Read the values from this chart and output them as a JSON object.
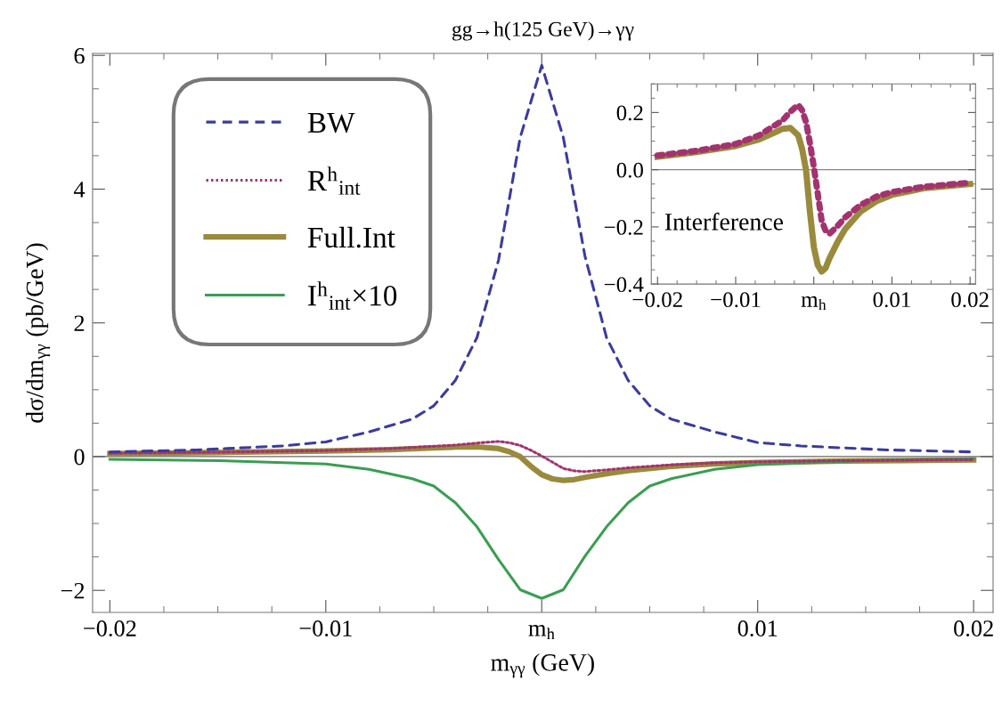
{
  "chart_data": [
    {
      "type": "line",
      "title": "gg→h(125 GeV)→γγ",
      "xlabel": "m$_{γγ}$ (GeV)",
      "ylabel": "dσ/dm$_{γγ}$ (pb/GeV)",
      "xlim": [
        -0.0208,
        0.0209
      ],
      "ylim": [
        -2.33,
        6.03
      ],
      "xticks": [
        {
          "value": -0.02,
          "label": "−0.02"
        },
        {
          "value": -0.01,
          "label": "−0.01"
        },
        {
          "value": 0,
          "label": "m$_{h}$"
        },
        {
          "value": 0.01,
          "label": "0.01"
        },
        {
          "value": 0.02,
          "label": "0.02"
        }
      ],
      "yticks": [
        {
          "value": -2,
          "label": "−2"
        },
        {
          "value": 0,
          "label": "0"
        },
        {
          "value": 2,
          "label": "2"
        },
        {
          "value": 4,
          "label": "4"
        },
        {
          "value": 6,
          "label": "6"
        }
      ],
      "legend": "top left",
      "grid": false,
      "ref_lines": [
        {
          "axis": "y",
          "value": 0,
          "color": "#666666"
        }
      ],
      "series": [
        {
          "name": "BW",
          "color": "#3b3b9e",
          "line_style": "dashed",
          "x": [
            -0.02,
            -0.016,
            -0.012,
            -0.01,
            -0.008,
            -0.006,
            -0.005,
            -0.004,
            -0.003,
            -0.002,
            -0.001,
            0,
            0.001,
            0.002,
            0.003,
            0.004,
            0.005,
            0.006,
            0.008,
            0.01,
            0.012,
            0.016,
            0.02
          ],
          "values": [
            0.07,
            0.1,
            0.16,
            0.22,
            0.37,
            0.56,
            0.76,
            1.14,
            1.78,
            2.94,
            4.77,
            5.85,
            4.77,
            3.0,
            1.78,
            1.14,
            0.76,
            0.56,
            0.37,
            0.21,
            0.16,
            0.1,
            0.07
          ]
        },
        {
          "name": "R$^{h}$$_{int}$",
          "color": "#a3336f",
          "line_style": "dotted",
          "x": [
            -0.02,
            -0.015,
            -0.01,
            -0.007,
            -0.005,
            -0.004,
            -0.003,
            -0.002,
            -0.0015,
            -0.001,
            -0.0005,
            0,
            0.0005,
            0.001,
            0.0015,
            0.002,
            0.003,
            0.004,
            0.006,
            0.008,
            0.01,
            0.014,
            0.02
          ],
          "values": [
            0.05,
            0.066,
            0.09,
            0.12,
            0.155,
            0.172,
            0.203,
            0.227,
            0.208,
            0.167,
            0.094,
            0.01,
            -0.083,
            -0.177,
            -0.213,
            -0.224,
            -0.198,
            -0.167,
            -0.123,
            -0.094,
            -0.078,
            -0.06,
            -0.045
          ]
        },
        {
          "name": "Full.Int",
          "color": "#9a8a3c",
          "line_style": "solid",
          "x": [
            -0.02,
            -0.015,
            -0.01,
            -0.007,
            -0.005,
            -0.004,
            -0.003,
            -0.002,
            -0.0015,
            -0.001,
            -0.0005,
            0,
            0.0005,
            0.001,
            0.0015,
            0.002,
            0.003,
            0.004,
            0.006,
            0.008,
            0.01,
            0.014,
            0.02
          ],
          "values": [
            0.045,
            0.062,
            0.083,
            0.106,
            0.13,
            0.143,
            0.146,
            0.12,
            0.073,
            0,
            -0.146,
            -0.27,
            -0.333,
            -0.356,
            -0.344,
            -0.31,
            -0.255,
            -0.208,
            -0.146,
            -0.11,
            -0.088,
            -0.065,
            -0.05
          ]
        },
        {
          "name": "I$^{h}$$_{int}$×10",
          "color": "#3a9e52",
          "line_style": "solid",
          "x": [
            -0.02,
            -0.015,
            -0.01,
            -0.008,
            -0.006,
            -0.005,
            -0.004,
            -0.003,
            -0.002,
            -0.001,
            0,
            0.001,
            0.002,
            0.003,
            0.004,
            0.005,
            0.006,
            0.008,
            0.01,
            0.015,
            0.02
          ],
          "values": [
            -0.04,
            -0.06,
            -0.11,
            -0.19,
            -0.33,
            -0.44,
            -0.69,
            -1.05,
            -1.54,
            -1.99,
            -2.12,
            -1.99,
            -1.49,
            -1.05,
            -0.69,
            -0.44,
            -0.33,
            -0.19,
            -0.12,
            -0.06,
            -0.03
          ]
        }
      ]
    },
    {
      "type": "line",
      "annotations": [
        "Interference"
      ],
      "xlim": [
        -0.0208,
        0.0207
      ],
      "ylim": [
        -0.4,
        0.3
      ],
      "xticks": [
        {
          "value": -0.02,
          "label": "−0.02"
        },
        {
          "value": -0.01,
          "label": "−0.01"
        },
        {
          "value": 0,
          "label": "m$_{h}$"
        },
        0.01,
        0.02
      ],
      "yticks": [
        {
          "value": -0.4,
          "label": "−0.4"
        },
        {
          "value": -0.2,
          "label": "−0.2"
        },
        {
          "value": 0,
          "label": "0.0"
        },
        0.2
      ],
      "grid": false,
      "ref_lines": [
        {
          "axis": "y",
          "value": 0,
          "color": "#888888"
        }
      ],
      "series": [
        {
          "color": "#a3336f",
          "line_style": "dotted",
          "x": [
            -0.02,
            -0.015,
            -0.01,
            -0.007,
            -0.005,
            -0.004,
            -0.003,
            -0.002,
            -0.0015,
            -0.001,
            -0.0005,
            0,
            0.0005,
            0.001,
            0.0015,
            0.002,
            0.003,
            0.004,
            0.006,
            0.008,
            0.01,
            0.014,
            0.02
          ],
          "values": [
            0.05,
            0.066,
            0.09,
            0.12,
            0.155,
            0.172,
            0.203,
            0.227,
            0.208,
            0.167,
            0.094,
            0.01,
            -0.083,
            -0.177,
            -0.213,
            -0.224,
            -0.198,
            -0.167,
            -0.123,
            -0.094,
            -0.078,
            -0.06,
            -0.045
          ]
        },
        {
          "color": "#9a8a3c",
          "line_style": "solid",
          "x": [
            -0.02,
            -0.015,
            -0.01,
            -0.007,
            -0.005,
            -0.004,
            -0.003,
            -0.002,
            -0.0015,
            -0.001,
            -0.0005,
            0,
            0.0005,
            0.001,
            0.0015,
            0.002,
            0.003,
            0.004,
            0.006,
            0.008,
            0.01,
            0.014,
            0.02
          ],
          "values": [
            0.045,
            0.062,
            0.083,
            0.106,
            0.13,
            0.143,
            0.146,
            0.12,
            0.073,
            0,
            -0.146,
            -0.27,
            -0.333,
            -0.356,
            -0.344,
            -0.31,
            -0.255,
            -0.208,
            -0.146,
            -0.11,
            -0.088,
            -0.065,
            -0.05
          ]
        }
      ]
    }
  ]
}
